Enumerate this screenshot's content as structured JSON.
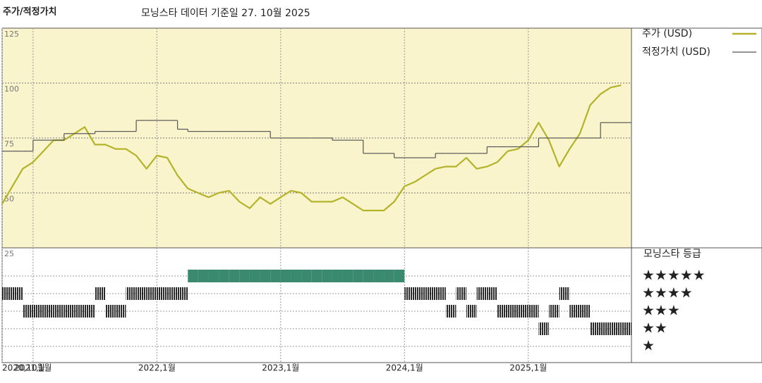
{
  "chart_data": {
    "type": "line",
    "title": "주가/적정가치",
    "subtitle": "모닝스타 데이터 기준일 27. 10월 2025",
    "x": [
      "2020-10",
      "2020-11",
      "2020-12",
      "2021-01",
      "2021-02",
      "2021-03",
      "2021-04",
      "2021-05",
      "2021-06",
      "2021-07",
      "2021-08",
      "2021-09",
      "2021-10",
      "2021-11",
      "2021-12",
      "2022-01",
      "2022-02",
      "2022-03",
      "2022-04",
      "2022-05",
      "2022-06",
      "2022-07",
      "2022-08",
      "2022-09",
      "2022-10",
      "2022-11",
      "2022-12",
      "2023-01",
      "2023-02",
      "2023-03",
      "2023-04",
      "2023-05",
      "2023-06",
      "2023-07",
      "2023-08",
      "2023-09",
      "2023-10",
      "2023-11",
      "2023-12",
      "2024-01",
      "2024-02",
      "2024-03",
      "2024-04",
      "2024-05",
      "2024-06",
      "2024-07",
      "2024-08",
      "2024-09",
      "2024-10",
      "2024-11",
      "2024-12",
      "2025-01",
      "2025-02",
      "2025-03",
      "2025-04",
      "2025-05",
      "2025-06",
      "2025-07",
      "2025-08",
      "2025-09",
      "2025-10"
    ],
    "xlim": [
      "2020-10",
      "2025-11"
    ],
    "xticks": [
      {
        "value": "2020-10",
        "label": "2020,10월"
      },
      {
        "value": "2021-01",
        "label": "2021,1월"
      },
      {
        "value": "2022-01",
        "label": "2022,1월"
      },
      {
        "value": "2023-01",
        "label": "2023,1월"
      },
      {
        "value": "2024-01",
        "label": "2024,1월"
      },
      {
        "value": "2025-01",
        "label": "2025,1월"
      }
    ],
    "ylim": [
      25,
      125
    ],
    "yticks": [
      25,
      50,
      75,
      100,
      125
    ],
    "grid": true,
    "series": [
      {
        "name": "주가 (USD)",
        "color": "#b3b32a",
        "values": [
          45,
          53,
          61,
          64,
          69,
          74,
          74,
          77,
          80,
          72,
          72,
          70,
          70,
          67,
          61,
          67,
          66,
          58,
          52,
          50,
          48,
          50,
          51,
          46,
          43,
          48,
          45,
          48,
          51,
          50,
          46,
          46,
          46,
          48,
          45,
          42,
          42,
          42,
          46,
          53,
          55,
          58,
          61,
          62,
          62,
          66,
          61,
          62,
          64,
          69,
          70,
          74,
          82,
          74,
          62,
          70,
          77,
          90,
          95,
          98,
          99
        ]
      },
      {
        "name": "적정가치 (USD)",
        "color": "#555555",
        "step": true,
        "values": [
          69,
          69,
          69,
          74,
          74,
          74,
          77,
          77,
          77,
          78,
          78,
          78,
          78,
          83,
          83,
          83,
          83,
          79,
          78,
          78,
          78,
          78,
          78,
          78,
          78,
          78,
          75,
          75,
          75,
          75,
          75,
          75,
          74,
          74,
          74,
          68,
          68,
          68,
          66,
          66,
          66,
          66,
          68,
          68,
          68,
          68,
          68,
          71,
          71,
          71,
          71,
          71,
          75,
          75,
          75,
          75,
          75,
          75,
          82,
          82,
          82
        ]
      }
    ],
    "ratings": {
      "title": "모닝스타 등급",
      "levels": [
        5,
        4,
        3,
        2,
        1
      ],
      "labels": [
        "★★★★★",
        "★★★★",
        "★★★",
        "★★",
        "★"
      ],
      "top_color": "#3a8a70",
      "color": "#2a2a2a",
      "values": [
        4,
        4,
        3,
        3,
        3,
        3,
        3,
        3,
        3,
        4,
        3,
        3,
        4,
        4,
        4,
        4,
        4,
        4,
        5,
        5,
        5,
        5,
        5,
        5,
        5,
        5,
        5,
        5,
        5,
        5,
        5,
        5,
        5,
        5,
        5,
        5,
        5,
        5,
        5,
        4,
        4,
        4,
        4,
        3,
        4,
        3,
        4,
        4,
        3,
        3,
        3,
        3,
        2,
        3,
        4,
        3,
        3,
        2,
        2,
        2,
        2
      ]
    }
  }
}
